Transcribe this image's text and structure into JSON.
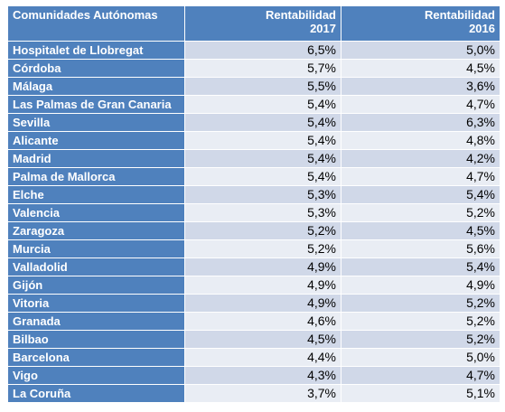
{
  "table": {
    "headers": {
      "region": "Comunidades Autónomas",
      "col2017_line1": "Rentabilidad",
      "col2017_line2": "2017",
      "col2016_line1": "Rentabilidad",
      "col2016_line2": "2016"
    },
    "rows": [
      {
        "name": "Hospitalet de Llobregat",
        "r2017": "6,5%",
        "r2016": "5,0%"
      },
      {
        "name": "Córdoba",
        "r2017": "5,7%",
        "r2016": "4,5%"
      },
      {
        "name": "Málaga",
        "r2017": "5,5%",
        "r2016": "3,6%"
      },
      {
        "name": "Las Palmas de Gran Canaria",
        "r2017": "5,4%",
        "r2016": "4,7%"
      },
      {
        "name": "Sevilla",
        "r2017": "5,4%",
        "r2016": "6,3%"
      },
      {
        "name": "Alicante",
        "r2017": "5,4%",
        "r2016": "4,8%"
      },
      {
        "name": "Madrid",
        "r2017": "5,4%",
        "r2016": "4,2%"
      },
      {
        "name": "Palma de Mallorca",
        "r2017": "5,4%",
        "r2016": "4,7%"
      },
      {
        "name": "Elche",
        "r2017": "5,3%",
        "r2016": "5,4%"
      },
      {
        "name": "Valencia",
        "r2017": "5,3%",
        "r2016": "5,2%"
      },
      {
        "name": "Zaragoza",
        "r2017": "5,2%",
        "r2016": "4,5%"
      },
      {
        "name": "Murcia",
        "r2017": "5,2%",
        "r2016": "5,6%"
      },
      {
        "name": "Valladolid",
        "r2017": "4,9%",
        "r2016": "5,4%"
      },
      {
        "name": "Gijón",
        "r2017": "4,9%",
        "r2016": "4,9%"
      },
      {
        "name": "Vitoria",
        "r2017": "4,9%",
        "r2016": "5,2%"
      },
      {
        "name": "Granada",
        "r2017": "4,6%",
        "r2016": "5,2%"
      },
      {
        "name": "Bilbao",
        "r2017": "4,5%",
        "r2016": "5,2%"
      },
      {
        "name": "Barcelona",
        "r2017": "4,4%",
        "r2016": "5,0%"
      },
      {
        "name": "Vigo",
        "r2017": "4,3%",
        "r2016": "4,7%"
      },
      {
        "name": "La Coruña",
        "r2017": "3,7%",
        "r2016": "5,1%"
      }
    ]
  },
  "colors": {
    "header_blue": "#4f81bd",
    "row_band_dark": "#d0d8e8",
    "row_band_light": "#e9edf4"
  }
}
